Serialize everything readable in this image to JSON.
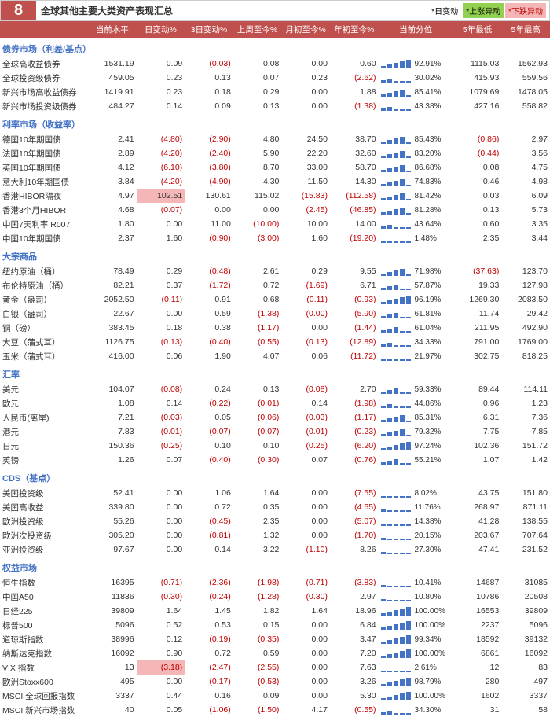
{
  "header": {
    "badge": "8",
    "title": "全球其他主要大类资产表现汇总",
    "legend": [
      {
        "label": "*日变动",
        "style": "color:#000"
      },
      {
        "label": "*上涨异动",
        "style": "background:#92d050;color:#000"
      },
      {
        "label": "*下跌异动",
        "style": "background:#f4b6b6;color:#c00000"
      }
    ]
  },
  "columns": [
    "",
    "当前水平",
    "日变动%",
    "3日变动%",
    "上周至今%",
    "月初至今%",
    "年初至今%",
    "当前分位",
    "5年最低",
    "5年最高"
  ],
  "style": {
    "neg_color": "#c00000",
    "pos_color": "#333333",
    "highlight_bg": "#f4b6b6",
    "section_color": "#4472c4",
    "spark_color": "#4472c4",
    "text_fontsize": 10.5
  },
  "sections": [
    {
      "name": "债券市场（利差/基点）",
      "rows": [
        {
          "n": "全球高收益债券",
          "v": [
            "1531.19",
            "0.09",
            "(0.03)",
            "0.08",
            "0.00",
            "0.60"
          ],
          "p": 92.91,
          "lo": "1115.03",
          "hi": "1562.93"
        },
        {
          "n": "全球投资级债券",
          "v": [
            "459.05",
            "0.23",
            "0.13",
            "0.07",
            "0.23",
            "(2.62)"
          ],
          "p": 30.02,
          "lo": "415.93",
          "hi": "559.56"
        },
        {
          "n": "新兴市场高收益债券",
          "v": [
            "1419.91",
            "0.23",
            "0.18",
            "0.29",
            "0.00",
            "1.88"
          ],
          "p": 85.41,
          "lo": "1079.69",
          "hi": "1478.05"
        },
        {
          "n": "新兴市场投资级债券",
          "v": [
            "484.27",
            "0.14",
            "0.09",
            "0.13",
            "0.00",
            "(1.38)"
          ],
          "p": 43.38,
          "lo": "427.16",
          "hi": "558.82"
        }
      ]
    },
    {
      "name": "利率市场（收益率）",
      "rows": [
        {
          "n": "德国10年期国债",
          "v": [
            "2.41",
            "(4.80)",
            "(2.90)",
            "4.80",
            "24.50",
            "38.70"
          ],
          "p": 85.43,
          "lo": "(0.86)",
          "hi": "2.97"
        },
        {
          "n": "法国10年期国债",
          "v": [
            "2.89",
            "(4.20)",
            "(2.40)",
            "5.90",
            "22.20",
            "32.60"
          ],
          "p": 83.2,
          "lo": "(0.44)",
          "hi": "3.56"
        },
        {
          "n": "英国10年期国债",
          "v": [
            "4.12",
            "(6.10)",
            "(3.80)",
            "8.70",
            "33.00",
            "58.70"
          ],
          "p": 86.68,
          "lo": "0.08",
          "hi": "4.75"
        },
        {
          "n": "意大利10年期国债",
          "v": [
            "3.84",
            "(4.20)",
            "(4.90)",
            "4.30",
            "11.50",
            "14.30"
          ],
          "p": 74.83,
          "lo": "0.46",
          "hi": "4.98"
        },
        {
          "n": "香港HIBOR隔夜",
          "v": [
            "4.97",
            {
              "t": "102.51",
              "hl": true
            },
            "130.61",
            "115.02",
            "(15.83)",
            "(112.58)"
          ],
          "p": 81.42,
          "lo": "0.03",
          "hi": "6.09"
        },
        {
          "n": "香港3个月HIBOR",
          "v": [
            "4.68",
            "(0.07)",
            "0.00",
            "0.00",
            "(2.45)",
            "(46.85)"
          ],
          "p": 81.28,
          "lo": "0.13",
          "hi": "5.73"
        },
        {
          "n": "中国7天利率 R007",
          "v": [
            "1.80",
            "0.00",
            "11.00",
            "(10.00)",
            "10.00",
            "14.00"
          ],
          "p": 43.64,
          "lo": "0.60",
          "hi": "3.35"
        },
        {
          "n": "中国10年期国债",
          "v": [
            "2.37",
            "1.60",
            "(0.90)",
            "(3.00)",
            "1.60",
            "(19.20)"
          ],
          "p": 1.48,
          "lo": "2.35",
          "hi": "3.44"
        }
      ]
    },
    {
      "name": "大宗商品",
      "rows": [
        {
          "n": "纽约原油（桶）",
          "v": [
            "78.49",
            "0.29",
            "(0.48)",
            "2.61",
            "0.29",
            "9.55"
          ],
          "p": 71.98,
          "lo": "(37.63)",
          "hi": "123.70"
        },
        {
          "n": "布伦特原油（桶）",
          "v": [
            "82.21",
            "0.37",
            "(1.72)",
            "0.72",
            "(1.69)",
            "6.71"
          ],
          "p": 57.87,
          "lo": "19.33",
          "hi": "127.98"
        },
        {
          "n": "黄金（盎司）",
          "v": [
            "2052.50",
            "(0.11)",
            "0.91",
            "0.68",
            "(0.11)",
            "(0.93)"
          ],
          "p": 96.19,
          "lo": "1269.30",
          "hi": "2083.50"
        },
        {
          "n": "白银（盎司）",
          "v": [
            "22.67",
            "0.00",
            "0.59",
            "(1.38)",
            "(0.00)",
            "(5.90)"
          ],
          "p": 61.81,
          "lo": "11.74",
          "hi": "29.42"
        },
        {
          "n": "铜（磅）",
          "v": [
            "383.45",
            "0.18",
            "0.38",
            "(1.17)",
            "0.00",
            "(1.44)"
          ],
          "p": 61.04,
          "lo": "211.95",
          "hi": "492.90"
        },
        {
          "n": "大豆（蒲式耳）",
          "v": [
            "1126.75",
            "(0.13)",
            "(0.40)",
            "(0.55)",
            "(0.13)",
            "(12.89)"
          ],
          "p": 34.33,
          "lo": "791.00",
          "hi": "1769.00"
        },
        {
          "n": "玉米（蒲式耳）",
          "v": [
            "416.00",
            "0.06",
            "1.90",
            "4.07",
            "0.06",
            "(11.72)"
          ],
          "p": 21.97,
          "lo": "302.75",
          "hi": "818.25"
        }
      ]
    },
    {
      "name": "汇率",
      "rows": [
        {
          "n": "美元",
          "v": [
            "104.07",
            "(0.08)",
            "0.24",
            "0.13",
            "(0.08)",
            "2.70"
          ],
          "p": 59.33,
          "lo": "89.44",
          "hi": "114.11"
        },
        {
          "n": "欧元",
          "v": [
            "1.08",
            "0.14",
            "(0.22)",
            "(0.01)",
            "0.14",
            "(1.98)"
          ],
          "p": 44.86,
          "lo": "0.96",
          "hi": "1.23"
        },
        {
          "n": "人民币(离岸)",
          "v": [
            "7.21",
            "(0.03)",
            "0.05",
            "(0.06)",
            "(0.03)",
            "(1.17)"
          ],
          "p": 85.31,
          "lo": "6.31",
          "hi": "7.36"
        },
        {
          "n": "港元",
          "v": [
            "7.83",
            "(0.01)",
            "(0.07)",
            "(0.07)",
            "(0.01)",
            "(0.23)"
          ],
          "p": 79.32,
          "lo": "7.75",
          "hi": "7.85"
        },
        {
          "n": "日元",
          "v": [
            "150.36",
            "(0.25)",
            "0.10",
            "0.10",
            "(0.25)",
            "(6.20)"
          ],
          "p": 97.24,
          "lo": "102.36",
          "hi": "151.72"
        },
        {
          "n": "英镑",
          "v": [
            "1.26",
            "0.07",
            "(0.40)",
            "(0.30)",
            "0.07",
            "(0.76)"
          ],
          "p": 55.21,
          "lo": "1.07",
          "hi": "1.42"
        }
      ]
    },
    {
      "name": "CDS（基点）",
      "rows": [
        {
          "n": "美国投资级",
          "v": [
            "52.41",
            "0.00",
            "1.06",
            "1.64",
            "0.00",
            "(7.55)"
          ],
          "p": 8.02,
          "lo": "43.75",
          "hi": "151.80"
        },
        {
          "n": "美国高收益",
          "v": [
            "339.80",
            "0.00",
            "0.72",
            "0.35",
            "0.00",
            "(4.65)"
          ],
          "p": 11.76,
          "lo": "268.97",
          "hi": "871.11"
        },
        {
          "n": "欧洲投资级",
          "v": [
            "55.26",
            "0.00",
            "(0.45)",
            "2.35",
            "0.00",
            "(5.07)"
          ],
          "p": 14.38,
          "lo": "41.28",
          "hi": "138.55"
        },
        {
          "n": "欧洲次投资级",
          "v": [
            "305.20",
            "0.00",
            "(0.81)",
            "1.32",
            "0.00",
            "(1.70)"
          ],
          "p": 20.15,
          "lo": "203.67",
          "hi": "707.64"
        },
        {
          "n": "亚洲投资级",
          "v": [
            "97.67",
            "0.00",
            "0.14",
            "3.22",
            "(1.10)",
            "8.26"
          ],
          "p": 27.3,
          "lo": "47.41",
          "hi": "231.52"
        }
      ]
    },
    {
      "name": "权益市场",
      "rows": [
        {
          "n": "恒生指数",
          "v": [
            "16395",
            "(0.71)",
            "(2.36)",
            "(1.98)",
            "(0.71)",
            "(3.83)"
          ],
          "p": 10.41,
          "lo": "14687",
          "hi": "31085"
        },
        {
          "n": "中国A50",
          "v": [
            "11836",
            "(0.30)",
            "(0.24)",
            "(1.28)",
            "(0.30)",
            "2.97"
          ],
          "p": 10.8,
          "lo": "10786",
          "hi": "20508"
        },
        {
          "n": "日经225",
          "v": [
            "39809",
            "1.64",
            "1.45",
            "1.82",
            "1.64",
            "18.96"
          ],
          "p": 100.0,
          "lo": "16553",
          "hi": "39809"
        },
        {
          "n": "标普500",
          "v": [
            "5096",
            "0.52",
            "0.53",
            "0.15",
            "0.00",
            "6.84"
          ],
          "p": 100.0,
          "lo": "2237",
          "hi": "5096"
        },
        {
          "n": "道琼斯指数",
          "v": [
            "38996",
            "0.12",
            "(0.19)",
            "(0.35)",
            "0.00",
            "3.47"
          ],
          "p": 99.34,
          "lo": "18592",
          "hi": "39132"
        },
        {
          "n": "纳斯达克指数",
          "v": [
            "16092",
            "0.90",
            "0.72",
            "0.59",
            "0.00",
            "7.20"
          ],
          "p": 100.0,
          "lo": "6861",
          "hi": "16092"
        },
        {
          "n": "VIX 指数",
          "v": [
            "13",
            {
              "t": "(3.18)",
              "hl": true
            },
            "(2.47)",
            "(2.55)",
            "0.00",
            "7.63"
          ],
          "p": 2.61,
          "lo": "12",
          "hi": "83"
        },
        {
          "n": "欧洲Stoxx600",
          "v": [
            "495",
            "0.00",
            "(0.17)",
            "(0.53)",
            "0.00",
            "3.26"
          ],
          "p": 98.79,
          "lo": "280",
          "hi": "497"
        },
        {
          "n": "MSCI 全球回报指数",
          "v": [
            "3337",
            "0.44",
            "0.16",
            "0.09",
            "0.00",
            "5.30"
          ],
          "p": 100.0,
          "lo": "1602",
          "hi": "3337"
        },
        {
          "n": "MSCI 新兴市场指数",
          "v": [
            "40",
            "0.05",
            "(1.06)",
            "(1.50)",
            "4.17",
            "(0.55)"
          ],
          "p": 34.3,
          "lo": "31",
          "hi": "58"
        }
      ]
    }
  ]
}
